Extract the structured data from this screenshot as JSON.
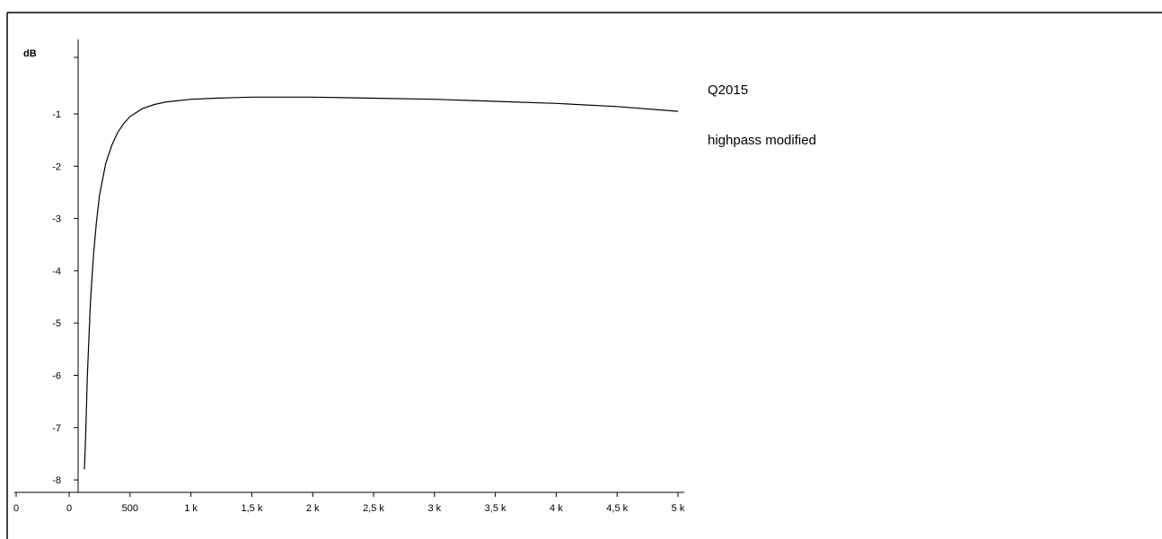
{
  "notes": {
    "line1": "Q2015",
    "line2": "highpass modified"
  },
  "chart_data": {
    "type": "line",
    "title": "",
    "xlabel": "",
    "ylabel": "dB",
    "xlim": [
      0,
      5000
    ],
    "ylim": [
      -8.25,
      0.1
    ],
    "grid": false,
    "x_ticks": [
      {
        "value": 0,
        "label": "0"
      },
      {
        "value": 500,
        "label": "500"
      },
      {
        "value": 1000,
        "label": "1 k"
      },
      {
        "value": 1500,
        "label": "1,5 k"
      },
      {
        "value": 2000,
        "label": "2 k"
      },
      {
        "value": 2500,
        "label": "2,5 k"
      },
      {
        "value": 3000,
        "label": "3 k"
      },
      {
        "value": 3500,
        "label": "3,5 k"
      },
      {
        "value": 4000,
        "label": "4 k"
      },
      {
        "value": 4500,
        "label": "4,5 k"
      },
      {
        "value": 5000,
        "label": "5 k"
      }
    ],
    "y_ticks": [
      {
        "value": -1,
        "label": "-1"
      },
      {
        "value": -2,
        "label": "-2"
      },
      {
        "value": -3,
        "label": "-3"
      },
      {
        "value": -4,
        "label": "-4"
      },
      {
        "value": -5,
        "label": "-5"
      },
      {
        "value": -6,
        "label": "-6"
      },
      {
        "value": -7,
        "label": "-7"
      },
      {
        "value": -8,
        "label": "-8"
      }
    ],
    "extra_x_label": "0",
    "series": [
      {
        "color": "#000000",
        "x": [
          125,
          135,
          150,
          175,
          200,
          225,
          250,
          300,
          350,
          400,
          450,
          500,
          600,
          700,
          800,
          1000,
          1200,
          1500,
          2000,
          2500,
          3000,
          3500,
          4000,
          4500,
          5000
        ],
        "y": [
          -7.8,
          -7.2,
          -6.0,
          -4.6,
          -3.7,
          -3.05,
          -2.55,
          -1.95,
          -1.6,
          -1.35,
          -1.18,
          -1.05,
          -0.9,
          -0.82,
          -0.77,
          -0.72,
          -0.7,
          -0.68,
          -0.68,
          -0.7,
          -0.72,
          -0.76,
          -0.8,
          -0.86,
          -0.95
        ]
      }
    ]
  }
}
